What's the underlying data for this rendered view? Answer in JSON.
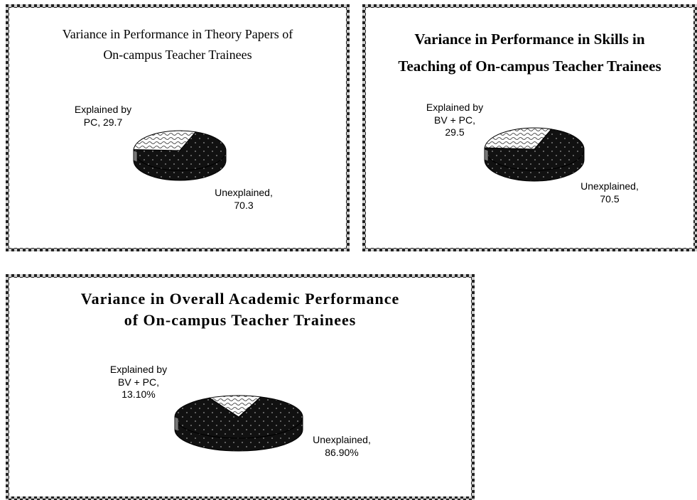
{
  "chart_data": [
    {
      "type": "pie",
      "title": [
        "Variance in Performance in Theory Papers of",
        "On-campus Teacher Trainees"
      ],
      "slices": [
        {
          "label_lines": [
            "Explained by",
            "PC, 29.7"
          ],
          "value": 29.7,
          "pattern": "wave"
        },
        {
          "label_lines": [
            "Unexplained,",
            "70.3"
          ],
          "value": 70.3,
          "pattern": "dots-dark"
        }
      ]
    },
    {
      "type": "pie",
      "title": [
        "Variance in Performance in Skills in",
        "Teaching of On-campus Teacher Trainees"
      ],
      "slices": [
        {
          "label_lines": [
            "Explained by",
            "BV + PC,",
            "29.5"
          ],
          "value": 29.5,
          "pattern": "wave"
        },
        {
          "label_lines": [
            "Unexplained,",
            "70.5"
          ],
          "value": 70.5,
          "pattern": "dots-dark"
        }
      ]
    },
    {
      "type": "pie",
      "title": [
        "Variance in Overall Academic Performance",
        "of On-campus Teacher Trainees"
      ],
      "slices": [
        {
          "label_lines": [
            "Explained by",
            "BV + PC,",
            "13.10%"
          ],
          "value": 13.1,
          "pattern": "wave"
        },
        {
          "label_lines": [
            "Unexplained,",
            "86.90%"
          ],
          "value": 86.9,
          "pattern": "dots-dark"
        }
      ]
    }
  ],
  "colors": {
    "dark_fill": "#111111",
    "dot": "#9a9a9a",
    "wave_bg": "#ffffff",
    "wave_stroke": "#555555",
    "border_dark": "#222222",
    "border_light": "#cfcfcf"
  }
}
